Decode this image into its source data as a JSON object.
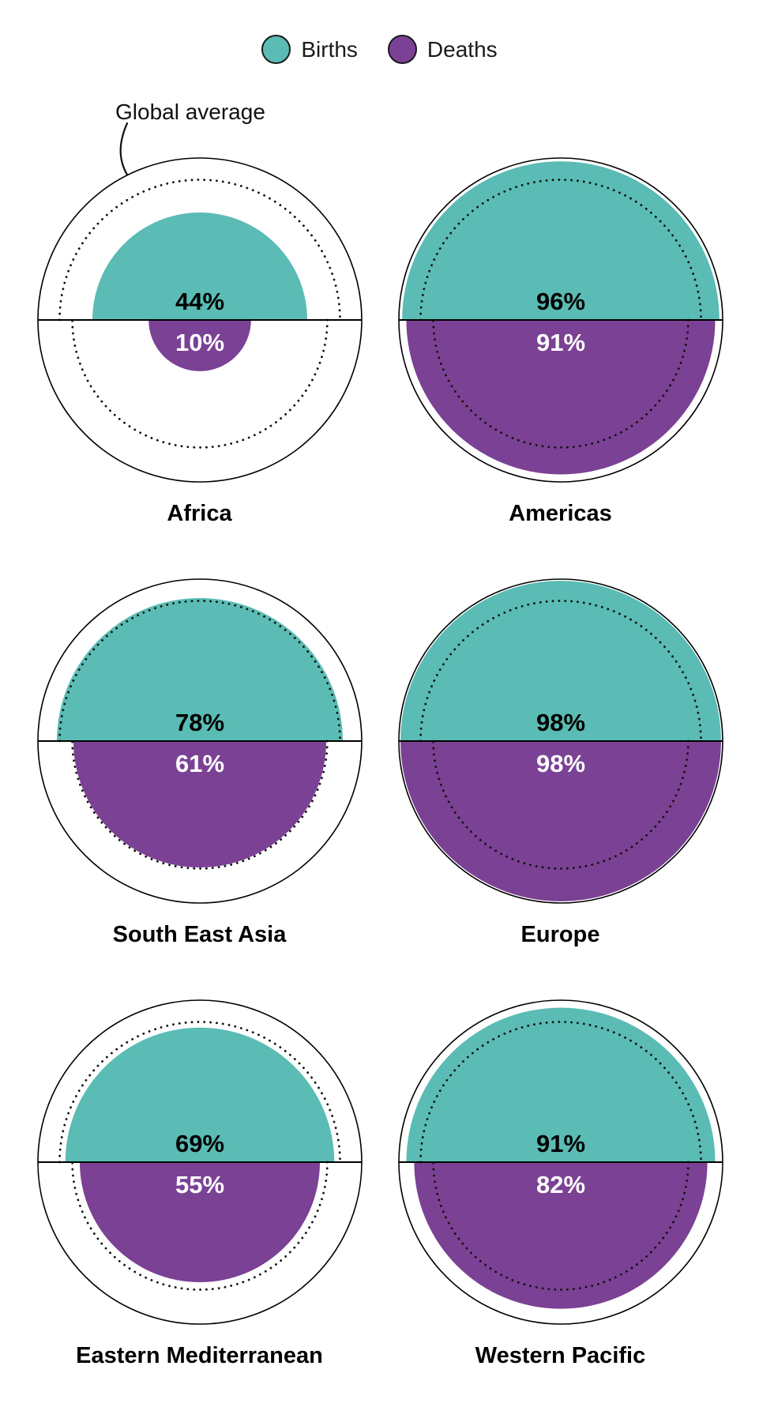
{
  "legend": {
    "items": [
      {
        "label": "Births",
        "color": "#5abcb4"
      },
      {
        "label": "Deaths",
        "color": "#7b4194"
      }
    ]
  },
  "annotation": {
    "label": "Global average"
  },
  "colors": {
    "births": "#5abcb4",
    "deaths": "#7b4194",
    "outline": "#000000",
    "dotted": "#111111",
    "background": "#ffffff"
  },
  "chart_data": {
    "type": "pie",
    "subtype": "split-circle-proportional-area",
    "description": "Share of births (top half, teal) and deaths (bottom half, purple) registered, by WHO region. Semicircle radius = R * sqrt(value/100); dotted semicircles mark the global average.",
    "unit": "%",
    "series": [
      "Births",
      "Deaths"
    ],
    "categories": [
      "Africa",
      "Americas",
      "South East Asia",
      "Europe",
      "Eastern Mediterranean",
      "Western Pacific"
    ],
    "regions": [
      {
        "name": "Africa",
        "births": 44,
        "deaths": 10
      },
      {
        "name": "Americas",
        "births": 96,
        "deaths": 91
      },
      {
        "name": "South East Asia",
        "births": 78,
        "deaths": 61
      },
      {
        "name": "Europe",
        "births": 98,
        "deaths": 98
      },
      {
        "name": "Eastern Mediterranean",
        "births": 69,
        "deaths": 55
      },
      {
        "name": "Western Pacific",
        "births": 91,
        "deaths": 82
      }
    ],
    "global_average_dotted": {
      "births": 75,
      "deaths": 62
    },
    "legend_position": "top",
    "value_labels": "inside, births black above midline, deaths white below midline"
  }
}
